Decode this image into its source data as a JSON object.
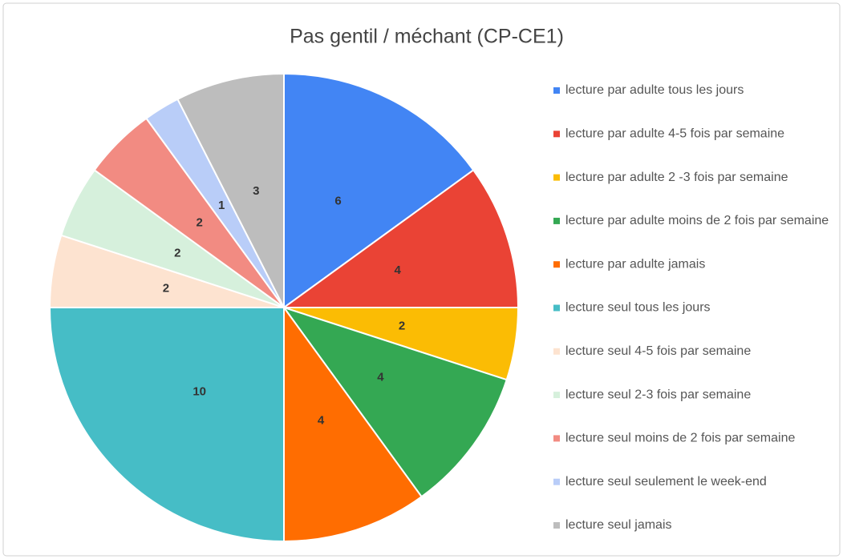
{
  "chart_data": {
    "type": "pie",
    "title": "Pas gentil / méchant (CP-CE1)",
    "categories": [
      "lecture par adulte tous les jours",
      "lecture par adulte 4-5 fois par semaine",
      "lecture par adulte 2 -3 fois par semaine",
      "lecture par adulte moins de 2 fois par semaine",
      "lecture par adulte jamais",
      "lecture seul tous les jours",
      "lecture seul 4-5 fois par semaine",
      "lecture seul 2-3 fois par semaine",
      "lecture seul moins de 2 fois par semaine",
      "lecture seul seulement le week-end",
      "lecture seul jamais"
    ],
    "values": [
      6,
      4,
      2,
      4,
      4,
      10,
      2,
      2,
      2,
      1,
      3
    ],
    "colors": [
      "#4285f4",
      "#ea4335",
      "#fbbc04",
      "#34a853",
      "#ff6d01",
      "#46bdc6",
      "#fde3d0",
      "#d6f0dc",
      "#f28b82",
      "#b9cdf8",
      "#bdbdbd"
    ],
    "legend": "right"
  }
}
